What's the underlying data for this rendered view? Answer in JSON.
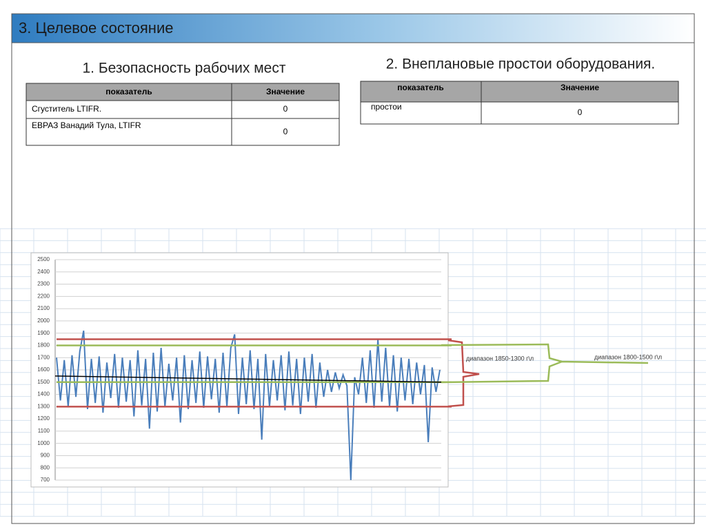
{
  "header": {
    "title": "3.  Целевое состояние"
  },
  "left": {
    "heading": "1. Безопасность рабочих мест",
    "table": {
      "columns": [
        "показатель",
        "Значение"
      ],
      "rows": [
        [
          "Сгуститель  LTIFR.",
          "0"
        ],
        [
          "ЕВРАЗ Ванадий Тула, LTIFR",
          "0"
        ]
      ]
    }
  },
  "right": {
    "heading": "2. Внеплановые простои оборудования.",
    "table": {
      "columns": [
        "показатель",
        "Значение"
      ],
      "rows": [
        [
          "простои",
          "0"
        ]
      ]
    }
  },
  "chart_data": {
    "type": "line",
    "ylim": [
      700,
      2500
    ],
    "yticks": [
      700,
      800,
      900,
      1000,
      1100,
      1200,
      1300,
      1400,
      1500,
      1600,
      1700,
      1800,
      1900,
      2000,
      2100,
      2200,
      2300,
      2400,
      2500
    ],
    "grid": true,
    "series": [
      {
        "color": "#4a7ebb",
        "values": [
          1700,
          1350,
          1680,
          1300,
          1720,
          1380,
          1750,
          1920,
          1280,
          1690,
          1330,
          1710,
          1250,
          1660,
          1370,
          1730,
          1290,
          1700,
          1340,
          1680,
          1220,
          1760,
          1310,
          1690,
          1120,
          1740,
          1260,
          1780,
          1300,
          1650,
          1350,
          1700,
          1170,
          1720,
          1280,
          1680,
          1330,
          1750,
          1290,
          1710,
          1360,
          1690,
          1250,
          1740,
          1300,
          1780,
          1890,
          1240,
          1700,
          1320,
          1760,
          1280,
          1690,
          1030,
          1730,
          1300,
          1680,
          1350,
          1720,
          1270,
          1750,
          1310,
          1690,
          1240,
          1700,
          1340,
          1730,
          1290,
          1660,
          1380,
          1600,
          1420,
          1580,
          1450,
          1560,
          1470,
          700,
          1540,
          1400,
          1700,
          1330,
          1760,
          1290,
          1850,
          1340,
          1780,
          1300,
          1720,
          1260,
          1700,
          1350,
          1690,
          1320,
          1660,
          1400,
          1640,
          1010,
          1620,
          1420,
          1600
        ]
      }
    ],
    "trend": {
      "color": "#000000",
      "values": [
        1550,
        1500
      ]
    },
    "reference_lines": [
      {
        "value": 1850,
        "color": "#c0504d"
      },
      {
        "value": 1300,
        "color": "#c0504d"
      },
      {
        "value": 1800,
        "color": "#9bbb59"
      },
      {
        "value": 1500,
        "color": "#9bbb59"
      }
    ],
    "annotations": [
      "диапазон 1850-1300  г\\л",
      "диапазон 1800-1500  г\\л"
    ]
  }
}
